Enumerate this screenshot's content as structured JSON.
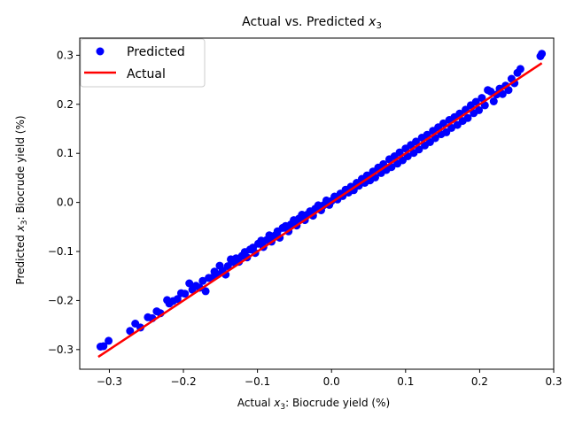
{
  "chart_data": {
    "type": "scatter",
    "title": "Actual vs. Predicted x3",
    "title_parts": [
      "Actual vs. Predicted ",
      "x",
      "3"
    ],
    "xlabel": "Actual x3: Biocrude yield (%)",
    "xlabel_parts": [
      "Actual ",
      "x",
      "3",
      ": Biocrude yield (%)"
    ],
    "ylabel": "Predicted x3: Biocrude yield (%)",
    "ylabel_parts": [
      "Predicted ",
      "x",
      "3",
      ": Biocrude yield (%)"
    ],
    "xlim": [
      -0.34,
      0.3
    ],
    "ylim": [
      -0.34,
      0.335
    ],
    "xticks": [
      -0.3,
      -0.2,
      -0.1,
      0.0,
      0.1,
      0.2,
      0.3
    ],
    "xtick_labels": [
      "−0.3",
      "−0.2",
      "−0.1",
      "0.0",
      "0.1",
      "0.2",
      "0.3"
    ],
    "yticks": [
      -0.3,
      -0.2,
      -0.1,
      0.0,
      0.1,
      0.2,
      0.3
    ],
    "ytick_labels": [
      "−0.3",
      "−0.2",
      "−0.1",
      "0.0",
      "0.1",
      "0.2",
      "0.3"
    ],
    "grid": false,
    "legend_position": "top-left",
    "series": [
      {
        "name": "Predicted",
        "kind": "scatter",
        "color": "#0000ff",
        "points": [
          [
            -0.312,
            -0.294
          ],
          [
            -0.308,
            -0.293
          ],
          [
            -0.301,
            -0.282
          ],
          [
            -0.272,
            -0.262
          ],
          [
            -0.265,
            -0.247
          ],
          [
            -0.258,
            -0.255
          ],
          [
            -0.248,
            -0.234
          ],
          [
            -0.242,
            -0.236
          ],
          [
            -0.236,
            -0.222
          ],
          [
            -0.231,
            -0.226
          ],
          [
            -0.222,
            -0.199
          ],
          [
            -0.219,
            -0.206
          ],
          [
            -0.214,
            -0.201
          ],
          [
            -0.208,
            -0.197
          ],
          [
            -0.203,
            -0.185
          ],
          [
            -0.198,
            -0.186
          ],
          [
            -0.192,
            -0.165
          ],
          [
            -0.188,
            -0.178
          ],
          [
            -0.183,
            -0.17
          ],
          [
            -0.178,
            -0.174
          ],
          [
            -0.174,
            -0.16
          ],
          [
            -0.17,
            -0.181
          ],
          [
            -0.166,
            -0.154
          ],
          [
            -0.162,
            -0.154
          ],
          [
            -0.158,
            -0.141
          ],
          [
            -0.154,
            -0.147
          ],
          [
            -0.151,
            -0.129
          ],
          [
            -0.147,
            -0.139
          ],
          [
            -0.143,
            -0.147
          ],
          [
            -0.14,
            -0.13
          ],
          [
            -0.136,
            -0.116
          ],
          [
            -0.132,
            -0.122
          ],
          [
            -0.129,
            -0.114
          ],
          [
            -0.125,
            -0.121
          ],
          [
            -0.121,
            -0.109
          ],
          [
            -0.117,
            -0.101
          ],
          [
            -0.114,
            -0.112
          ],
          [
            -0.11,
            -0.096
          ],
          [
            -0.106,
            -0.092
          ],
          [
            -0.103,
            -0.103
          ],
          [
            -0.099,
            -0.084
          ],
          [
            -0.095,
            -0.078
          ],
          [
            -0.092,
            -0.091
          ],
          [
            -0.088,
            -0.077
          ],
          [
            -0.084,
            -0.067
          ],
          [
            -0.081,
            -0.08
          ],
          [
            -0.077,
            -0.068
          ],
          [
            -0.073,
            -0.059
          ],
          [
            -0.07,
            -0.072
          ],
          [
            -0.066,
            -0.052
          ],
          [
            -0.062,
            -0.048
          ],
          [
            -0.058,
            -0.059
          ],
          [
            -0.055,
            -0.045
          ],
          [
            -0.051,
            -0.036
          ],
          [
            -0.047,
            -0.047
          ],
          [
            -0.044,
            -0.033
          ],
          [
            -0.04,
            -0.025
          ],
          [
            -0.036,
            -0.036
          ],
          [
            -0.033,
            -0.025
          ],
          [
            -0.029,
            -0.018
          ],
          [
            -0.025,
            -0.027
          ],
          [
            -0.022,
            -0.013
          ],
          [
            -0.018,
            -0.006
          ],
          [
            -0.014,
            -0.016
          ],
          [
            -0.011,
            -0.006
          ],
          [
            -0.007,
            0.004
          ],
          [
            -0.003,
            -0.005
          ],
          [
            0.0,
            0.003
          ],
          [
            0.004,
            0.012
          ],
          [
            0.008,
            0.006
          ],
          [
            0.012,
            0.018
          ],
          [
            0.015,
            0.013
          ],
          [
            0.019,
            0.026
          ],
          [
            0.023,
            0.02
          ],
          [
            0.026,
            0.032
          ],
          [
            0.03,
            0.025
          ],
          [
            0.034,
            0.04
          ],
          [
            0.037,
            0.034
          ],
          [
            0.041,
            0.048
          ],
          [
            0.045,
            0.04
          ],
          [
            0.048,
            0.055
          ],
          [
            0.052,
            0.045
          ],
          [
            0.056,
            0.063
          ],
          [
            0.059,
            0.051
          ],
          [
            0.063,
            0.071
          ],
          [
            0.067,
            0.06
          ],
          [
            0.07,
            0.078
          ],
          [
            0.074,
            0.066
          ],
          [
            0.078,
            0.088
          ],
          [
            0.081,
            0.072
          ],
          [
            0.085,
            0.094
          ],
          [
            0.089,
            0.079
          ],
          [
            0.092,
            0.102
          ],
          [
            0.096,
            0.086
          ],
          [
            0.1,
            0.11
          ],
          [
            0.103,
            0.094
          ],
          [
            0.107,
            0.117
          ],
          [
            0.111,
            0.101
          ],
          [
            0.114,
            0.124
          ],
          [
            0.118,
            0.108
          ],
          [
            0.122,
            0.132
          ],
          [
            0.126,
            0.116
          ],
          [
            0.129,
            0.138
          ],
          [
            0.133,
            0.123
          ],
          [
            0.137,
            0.146
          ],
          [
            0.14,
            0.131
          ],
          [
            0.144,
            0.153
          ],
          [
            0.148,
            0.139
          ],
          [
            0.151,
            0.161
          ],
          [
            0.155,
            0.143
          ],
          [
            0.159,
            0.168
          ],
          [
            0.162,
            0.152
          ],
          [
            0.166,
            0.174
          ],
          [
            0.17,
            0.158
          ],
          [
            0.173,
            0.181
          ],
          [
            0.177,
            0.166
          ],
          [
            0.181,
            0.189
          ],
          [
            0.184,
            0.172
          ],
          [
            0.188,
            0.198
          ],
          [
            0.192,
            0.182
          ],
          [
            0.195,
            0.205
          ],
          [
            0.199,
            0.188
          ],
          [
            0.203,
            0.213
          ],
          [
            0.207,
            0.198
          ],
          [
            0.211,
            0.229
          ],
          [
            0.215,
            0.226
          ],
          [
            0.219,
            0.206
          ],
          [
            0.223,
            0.22
          ],
          [
            0.227,
            0.232
          ],
          [
            0.231,
            0.221
          ],
          [
            0.235,
            0.238
          ],
          [
            0.239,
            0.229
          ],
          [
            0.243,
            0.252
          ],
          [
            0.247,
            0.243
          ],
          [
            0.251,
            0.264
          ],
          [
            0.255,
            0.272
          ],
          [
            0.282,
            0.298
          ],
          [
            0.284,
            0.303
          ]
        ]
      },
      {
        "name": "Actual",
        "kind": "line",
        "color": "#ff0000",
        "points": [
          [
            -0.315,
            -0.315
          ],
          [
            0.284,
            0.284
          ]
        ]
      }
    ]
  }
}
